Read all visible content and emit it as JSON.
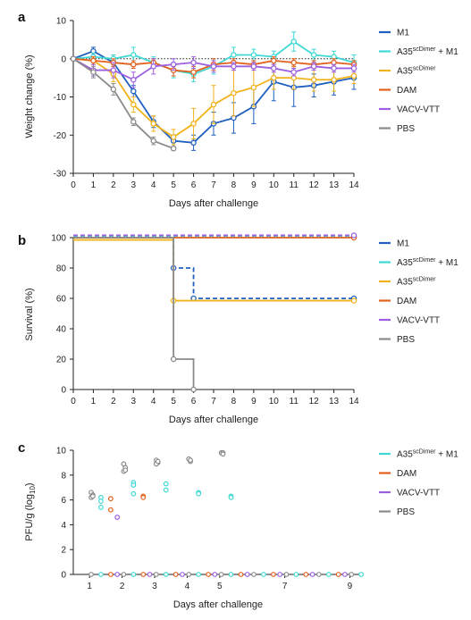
{
  "panels": [
    {
      "letter": "a"
    },
    {
      "letter": "b"
    },
    {
      "letter": "c"
    }
  ],
  "legend_main": [
    {
      "key": "M1",
      "label": "M1",
      "sup": "",
      "suffix": "",
      "color": "#1f5fbf"
    },
    {
      "key": "A35",
      "label": "A35",
      "sup": "scDimer",
      "suffix": " + M1",
      "color": "#3fd8d4"
    },
    {
      "key": "A35s",
      "label": "A35",
      "sup": "scDimer",
      "suffix": "",
      "color": "#f2b21b"
    },
    {
      "key": "DAM",
      "label": "DAM",
      "sup": "",
      "suffix": "",
      "color": "#e2601c"
    },
    {
      "key": "VACV",
      "label": "VACV-VTT",
      "sup": "",
      "suffix": "",
      "color": "#9c5fe0"
    },
    {
      "key": "PBS",
      "label": "PBS",
      "sup": "",
      "suffix": "",
      "color": "#8a8a8a"
    }
  ],
  "legend_c": [
    {
      "key": "A35",
      "label": "A35",
      "sup": "scDimer",
      "suffix": " + M1",
      "color": "#3fd8d4"
    },
    {
      "key": "DAM",
      "label": "DAM",
      "sup": "",
      "suffix": "",
      "color": "#e2601c"
    },
    {
      "key": "VACV",
      "label": "VACV-VTT",
      "sup": "",
      "suffix": "",
      "color": "#9c5fe0"
    },
    {
      "key": "PBS",
      "label": "PBS",
      "sup": "",
      "suffix": "",
      "color": "#8a8a8a"
    }
  ],
  "chart_data": [
    {
      "type": "line",
      "panel": "a",
      "xlabel": "Days after challenge",
      "ylabel": "Weight change (%)",
      "xlim": [
        0,
        14
      ],
      "ylim": [
        -30,
        10
      ],
      "xticks": [
        0,
        1,
        2,
        3,
        4,
        5,
        6,
        7,
        8,
        9,
        10,
        11,
        12,
        13,
        14
      ],
      "yticks": [
        -30,
        -20,
        -10,
        0,
        10
      ],
      "reference_line": 0,
      "series": [
        {
          "name": "M1",
          "color": "#1f5fbf",
          "x": [
            0,
            1,
            2,
            3,
            4,
            5,
            6,
            7,
            8,
            9,
            10,
            11,
            12,
            13,
            14
          ],
          "y": [
            0,
            2,
            -1,
            -8.5,
            -16.5,
            -21.5,
            -22,
            -17,
            -15.5,
            -12.5,
            -6,
            -7.5,
            -7,
            -6,
            -5
          ],
          "err": [
            0.5,
            1,
            2,
            1.5,
            1.5,
            1.5,
            2,
            3,
            4,
            4.5,
            5,
            5,
            3,
            3.5,
            3
          ]
        },
        {
          "name": "A35 + M1",
          "color": "#3fd8d4",
          "x": [
            0,
            1,
            2,
            3,
            4,
            5,
            6,
            7,
            8,
            9,
            10,
            11,
            12,
            13,
            14
          ],
          "y": [
            0,
            0.5,
            0,
            1,
            -1,
            -3,
            -4,
            -2,
            1,
            1,
            0.5,
            4.5,
            1,
            0.5,
            -1
          ],
          "err": [
            0.5,
            1,
            1,
            2,
            1.5,
            2,
            2,
            2,
            2,
            1.5,
            1.5,
            2.5,
            1.5,
            1.5,
            2
          ]
        },
        {
          "name": "A35",
          "color": "#f2b21b",
          "x": [
            0,
            1,
            2,
            3,
            4,
            5,
            6,
            7,
            8,
            9,
            10,
            11,
            12,
            13,
            14
          ],
          "y": [
            0,
            -0.5,
            -4,
            -12,
            -17,
            -20.5,
            -17,
            -12,
            -9,
            -7.5,
            -5,
            -5,
            -5.5,
            -5.5,
            -4.5
          ],
          "err": [
            0.5,
            1,
            2,
            2,
            2,
            2,
            4,
            5,
            6,
            5,
            3,
            3,
            3,
            3,
            2
          ]
        },
        {
          "name": "DAM",
          "color": "#e2601c",
          "x": [
            0,
            1,
            2,
            3,
            4,
            5,
            6,
            7,
            8,
            9,
            10,
            11,
            12,
            13,
            14
          ],
          "y": [
            0,
            -0.5,
            -1,
            -1.5,
            -1,
            -3,
            -3.5,
            -1.5,
            -1,
            -1.5,
            -0.5,
            -1,
            -1.5,
            -1,
            -1.5
          ],
          "err": [
            0.5,
            1,
            1,
            1,
            1,
            1.5,
            1.5,
            1.5,
            1,
            1,
            1,
            1,
            1,
            1,
            1
          ]
        },
        {
          "name": "VACV-VTT",
          "color": "#9c5fe0",
          "x": [
            0,
            1,
            2,
            3,
            4,
            5,
            6,
            7,
            8,
            9,
            10,
            11,
            12,
            13,
            14
          ],
          "y": [
            0,
            -3,
            -3,
            -5.5,
            -2,
            -1.5,
            -1,
            -2,
            -2,
            -2,
            -2.5,
            -3.5,
            -2,
            -2.5,
            -2.5
          ],
          "err": [
            0.5,
            1.5,
            2,
            2,
            2,
            1.5,
            1.5,
            1.5,
            1,
            1,
            1,
            1,
            1,
            1,
            1
          ]
        },
        {
          "name": "PBS",
          "color": "#8a8a8a",
          "x": [
            0,
            1,
            2,
            3,
            4,
            5
          ],
          "y": [
            0,
            -3.5,
            -8,
            -16.5,
            -21.5,
            -23.5
          ],
          "err": [
            0.5,
            1.5,
            1.5,
            1,
            1,
            0.5
          ]
        }
      ]
    },
    {
      "type": "line",
      "panel": "b",
      "step": true,
      "xlabel": "Days after challenge",
      "ylabel": "Survival (%)",
      "xlim": [
        0,
        14
      ],
      "ylim": [
        0,
        100
      ],
      "xticks": [
        0,
        1,
        2,
        3,
        4,
        5,
        6,
        7,
        8,
        9,
        10,
        11,
        12,
        13,
        14
      ],
      "yticks": [
        0,
        20,
        40,
        60,
        80,
        100
      ],
      "series": [
        {
          "name": "M1",
          "color": "#1f5fbf",
          "dashed": true,
          "x": [
            0,
            5,
            6,
            14
          ],
          "y": [
            100,
            80,
            60,
            60
          ],
          "markers": [
            [
              5,
              80
            ],
            [
              6,
              60
            ],
            [
              14,
              60
            ]
          ]
        },
        {
          "name": "A35 + M1",
          "color": "#3fd8d4",
          "dashed": true,
          "x": [
            0,
            14
          ],
          "y": [
            101,
            101
          ],
          "markers": [
            [
              14,
              101
            ]
          ]
        },
        {
          "name": "A35",
          "color": "#f2b21b",
          "dashed": false,
          "x": [
            0,
            5,
            14
          ],
          "y": [
            98.5,
            58.5,
            58.5
          ],
          "markers": [
            [
              5,
              58.5
            ],
            [
              14,
              58.5
            ]
          ]
        },
        {
          "name": "DAM",
          "color": "#e2601c",
          "dashed": false,
          "x": [
            0,
            14
          ],
          "y": [
            100,
            100
          ],
          "markers": [
            [
              14,
              100
            ]
          ]
        },
        {
          "name": "VACV-VTT",
          "color": "#9c5fe0",
          "dashed": true,
          "x": [
            0,
            14
          ],
          "y": [
            101.5,
            101.5
          ],
          "markers": [
            [
              14,
              101.5
            ]
          ]
        },
        {
          "name": "PBS",
          "color": "#8a8a8a",
          "dashed": false,
          "x": [
            0,
            5,
            6
          ],
          "y": [
            100,
            20,
            0
          ],
          "markers": [
            [
              5,
              20
            ],
            [
              6,
              0
            ]
          ]
        }
      ]
    },
    {
      "type": "scatter",
      "panel": "c",
      "xlabel": "Days after challenge",
      "ylabel_main": "PFU/g (log",
      "ylabel_sub": "10",
      "ylabel_end": ")",
      "xlim": [
        0.5,
        9.4
      ],
      "ylim": [
        0,
        10
      ],
      "xticks": [
        1,
        2,
        3,
        4,
        5,
        7,
        9
      ],
      "yticks": [
        0,
        2,
        4,
        6,
        8,
        10
      ],
      "series": [
        {
          "name": "A35 + M1",
          "color": "#3fd8d4",
          "x": [
            1.35,
            1.35,
            1.35,
            2.35,
            2.35,
            2.35,
            3.35,
            3.35,
            4.35,
            4.35,
            5.35,
            5.35,
            1.35,
            2.35,
            3.35,
            4.35,
            5.35,
            6.35,
            7.35,
            8.35,
            9.35
          ],
          "y": [
            6.2,
            5.9,
            5.4,
            7.4,
            7.2,
            6.5,
            7.3,
            6.8,
            6.6,
            6.5,
            6.3,
            6.2,
            0,
            0,
            0,
            0,
            0,
            0,
            0,
            0,
            0
          ]
        },
        {
          "name": "DAM",
          "color": "#e2601c",
          "x": [
            1.65,
            1.65,
            2.65,
            2.65,
            1.65,
            2.65,
            3.65,
            4.65,
            5.65,
            6.65,
            7.65,
            8.65
          ],
          "y": [
            6.1,
            5.2,
            6.3,
            6.2,
            0,
            0,
            0,
            0,
            0,
            0,
            0,
            0
          ]
        },
        {
          "name": "VACV-VTT",
          "color": "#9c5fe0",
          "x": [
            1.85,
            1.85,
            2.85,
            3.85,
            4.85,
            5.85,
            6.85,
            7.85,
            8.85
          ],
          "y": [
            4.6,
            0,
            0,
            0,
            0,
            0,
            0,
            0,
            0
          ]
        },
        {
          "name": "PBS",
          "color": "#8a8a8a",
          "x": [
            1.05,
            1.1,
            1.05,
            1.1,
            2.05,
            2.1,
            2.05,
            2.1,
            3.05,
            3.1,
            3.05,
            3.1,
            4.05,
            4.1,
            4.1,
            5.05,
            5.1,
            5.1,
            1.05,
            2.05,
            3.05,
            4.05,
            5.05,
            6.05,
            7.05,
            8.05,
            9.05
          ],
          "y": [
            6.6,
            6.4,
            6.2,
            6.3,
            8.9,
            8.6,
            8.3,
            8.4,
            9.2,
            9.0,
            8.9,
            9.1,
            9.3,
            9.1,
            9.2,
            9.8,
            9.8,
            9.7,
            0,
            0,
            0,
            0,
            0,
            0,
            0,
            0,
            0
          ]
        }
      ]
    }
  ]
}
